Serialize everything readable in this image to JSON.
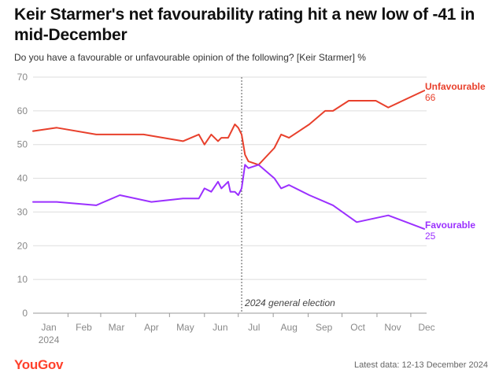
{
  "header": {
    "title": "Keir Starmer's net favourability rating hit a new low of -41 in mid-December",
    "subtitle": "Do you have a favourable or unfavourable opinion of the following? [Keir Starmer] %"
  },
  "footer": {
    "logo_text": "YouGov",
    "latest_data": "Latest data: 12-13 December 2024"
  },
  "colors": {
    "unfavourable": "#e8402c",
    "favourable": "#9b30ff",
    "logo": "#ff412c"
  },
  "chart_data": {
    "type": "line",
    "title": "Keir Starmer's net favourability rating hit a new low of -41 in mid-December",
    "ylim": [
      0,
      70
    ],
    "yticks": [
      0,
      10,
      20,
      30,
      40,
      50,
      60,
      70
    ],
    "grid": true,
    "x_tick_labels": [
      "Jan",
      "Feb",
      "Mar",
      "Apr",
      "May",
      "Jun",
      "Jul",
      "Aug",
      "Sep",
      "Oct",
      "Nov",
      "Dec"
    ],
    "x_year_label": "2024",
    "x_range": [
      "2024-01-01",
      "2024-12-15"
    ],
    "annotation": {
      "date": "2024-07-04",
      "label": "2024 general election"
    },
    "series": [
      {
        "name": "Unfavourable",
        "end_label": "66",
        "points": [
          [
            "2024-01-01",
            54
          ],
          [
            "2024-01-22",
            55
          ],
          [
            "2024-02-26",
            53
          ],
          [
            "2024-04-08",
            53
          ],
          [
            "2024-05-13",
            51
          ],
          [
            "2024-05-27",
            53
          ],
          [
            "2024-06-01",
            50
          ],
          [
            "2024-06-07",
            53
          ],
          [
            "2024-06-13",
            51
          ],
          [
            "2024-06-16",
            52
          ],
          [
            "2024-06-22",
            52
          ],
          [
            "2024-06-28",
            56
          ],
          [
            "2024-07-01",
            55
          ],
          [
            "2024-07-04",
            53
          ],
          [
            "2024-07-07",
            47
          ],
          [
            "2024-07-10",
            45
          ],
          [
            "2024-07-19",
            44
          ],
          [
            "2024-08-02",
            49
          ],
          [
            "2024-08-08",
            53
          ],
          [
            "2024-08-15",
            52
          ],
          [
            "2024-09-02",
            56
          ],
          [
            "2024-09-16",
            60
          ],
          [
            "2024-09-23",
            60
          ],
          [
            "2024-10-07",
            63
          ],
          [
            "2024-10-31",
            63
          ],
          [
            "2024-11-11",
            61
          ],
          [
            "2024-12-13",
            66
          ]
        ]
      },
      {
        "name": "Favourable",
        "end_label": "25",
        "points": [
          [
            "2024-01-01",
            33
          ],
          [
            "2024-01-22",
            33
          ],
          [
            "2024-02-26",
            32
          ],
          [
            "2024-03-18",
            35
          ],
          [
            "2024-04-15",
            33
          ],
          [
            "2024-05-13",
            34
          ],
          [
            "2024-05-27",
            34
          ],
          [
            "2024-06-01",
            37
          ],
          [
            "2024-06-07",
            36
          ],
          [
            "2024-06-13",
            39
          ],
          [
            "2024-06-16",
            37
          ],
          [
            "2024-06-22",
            39
          ],
          [
            "2024-06-24",
            36
          ],
          [
            "2024-06-28",
            36
          ],
          [
            "2024-07-01",
            35
          ],
          [
            "2024-07-04",
            37
          ],
          [
            "2024-07-07",
            44
          ],
          [
            "2024-07-10",
            43
          ],
          [
            "2024-07-19",
            44
          ],
          [
            "2024-08-02",
            40
          ],
          [
            "2024-08-08",
            37
          ],
          [
            "2024-08-15",
            38
          ],
          [
            "2024-09-02",
            35
          ],
          [
            "2024-09-23",
            32
          ],
          [
            "2024-10-14",
            27
          ],
          [
            "2024-11-11",
            29
          ],
          [
            "2024-12-13",
            25
          ]
        ]
      }
    ]
  }
}
